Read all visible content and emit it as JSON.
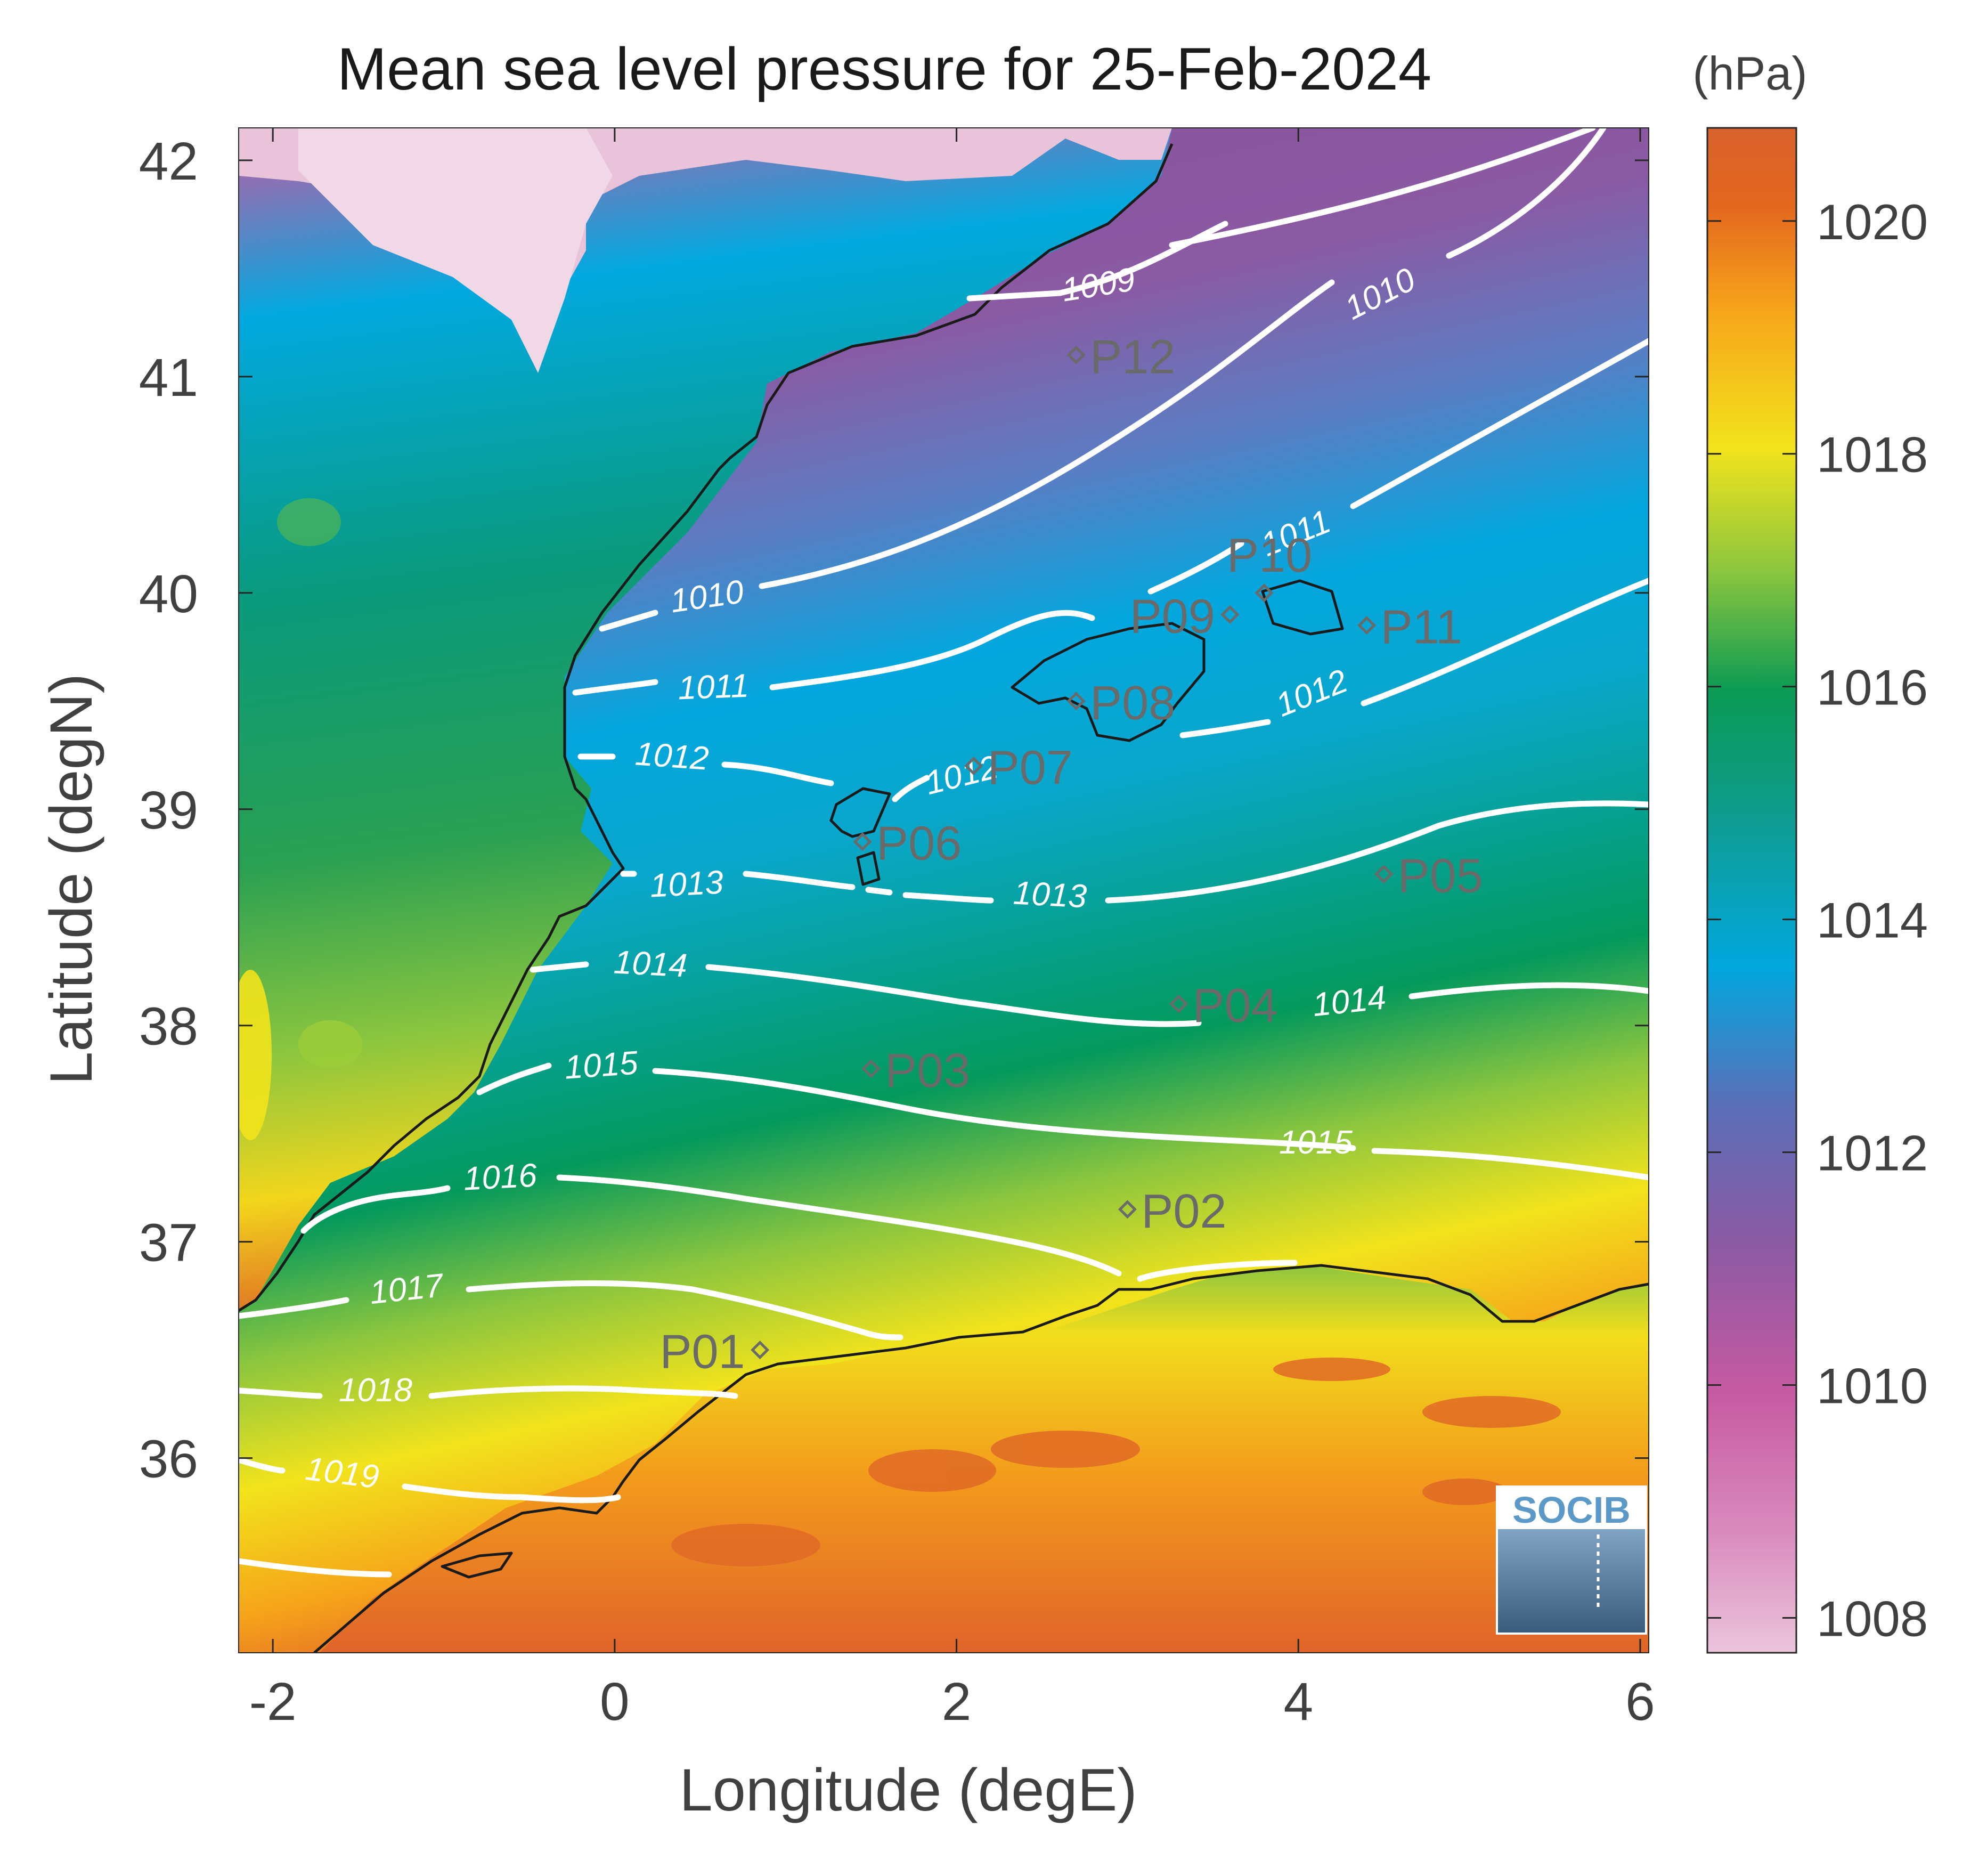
{
  "map": {
    "title": "Mean sea level pressure for 25-Feb-2024",
    "xlabel": "Longitude (degE)",
    "ylabel": "Latitude (degN)",
    "x_ticks": [
      -2,
      0,
      2,
      4,
      6
    ],
    "y_ticks": [
      36,
      37,
      38,
      39,
      40,
      41,
      42
    ],
    "xlim": [
      -2.2,
      6.05
    ],
    "ylim": [
      35.1,
      42.15
    ],
    "colorbar": {
      "unit": "(hPa)",
      "ticks": [
        1008,
        1010,
        1012,
        1014,
        1016,
        1018,
        1020
      ],
      "range": [
        1007.7,
        1020.8
      ],
      "colors": [
        "#ebc5db",
        "#c75aa2",
        "#8a5aa3",
        "#3f86c8",
        "#02a7de",
        "#0f9c8f",
        "#0a9a54",
        "#8cc63e",
        "#f2e31c",
        "#f7a51b",
        "#e3661e",
        "#d9622c"
      ]
    },
    "contour_labels": [
      "1009",
      "1010",
      "1010",
      "1011",
      "1011",
      "1012",
      "1012",
      "1012",
      "1013",
      "1013",
      "1014",
      "1014",
      "1015",
      "1015",
      "1016",
      "1017",
      "1018",
      "1019"
    ],
    "stations": [
      {
        "label": "P01"
      },
      {
        "label": "P02"
      },
      {
        "label": "P03"
      },
      {
        "label": "P04"
      },
      {
        "label": "P05"
      },
      {
        "label": "P06"
      },
      {
        "label": "P07"
      },
      {
        "label": "P08"
      },
      {
        "label": "P09"
      },
      {
        "label": "P10"
      },
      {
        "label": "P11"
      },
      {
        "label": "P12"
      }
    ],
    "logo": {
      "text": "SOCIB",
      "text_color": "#5b9ac8"
    },
    "colors": {
      "contour": "#ffffff",
      "coastline": "#1a1a1a",
      "station": "#6a6a6a"
    }
  }
}
